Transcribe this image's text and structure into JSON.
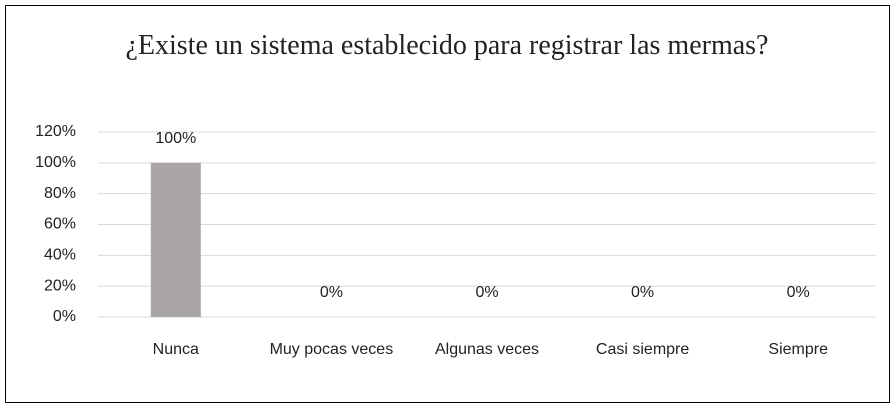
{
  "chart_data": {
    "type": "bar",
    "title": "¿Existe un sistema establecido para registrar las mermas?",
    "categories": [
      "Nunca",
      "Muy pocas veces",
      "Algunas veces",
      "Casi siempre",
      "Siempre"
    ],
    "values": [
      100,
      0,
      0,
      0,
      0
    ],
    "value_labels": [
      "100%",
      "0%",
      "0%",
      "0%",
      "0%"
    ],
    "color": "#aaa6a5",
    "ylim": [
      0,
      120
    ],
    "yticks": [
      {
        "value": 0,
        "label": "0%"
      },
      {
        "value": 20,
        "label": "20%"
      },
      {
        "value": 40,
        "label": "40%"
      },
      {
        "value": 60,
        "label": "60%"
      },
      {
        "value": 80,
        "label": "80%"
      },
      {
        "value": 100,
        "label": "100%"
      },
      {
        "value": 120,
        "label": "120%"
      }
    ],
    "grid": true
  }
}
